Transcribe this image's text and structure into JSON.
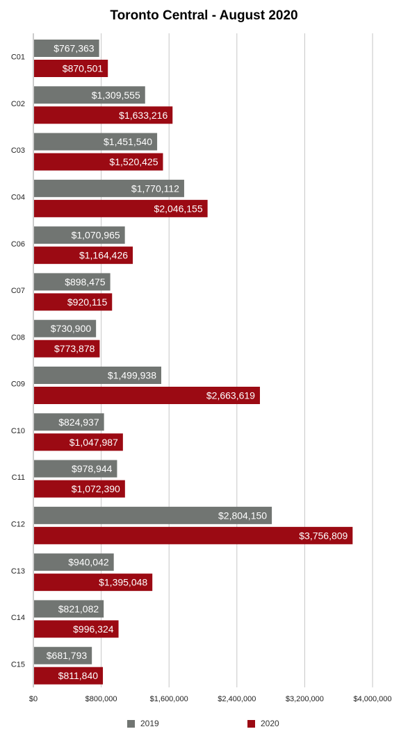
{
  "chart_data": {
    "type": "bar",
    "orientation": "horizontal",
    "title": "Toronto Central - August 2020",
    "xlabel": "",
    "ylabel": "",
    "categories": [
      "C01",
      "C02",
      "C03",
      "C04",
      "C06",
      "C07",
      "C08",
      "C09",
      "C10",
      "C11",
      "C12",
      "C13",
      "C14",
      "C15"
    ],
    "series": [
      {
        "name": "2019",
        "color": "#717572",
        "values": [
          767363,
          1309555,
          1451540,
          1770112,
          1070965,
          898475,
          730900,
          1499938,
          824937,
          978944,
          2804150,
          940042,
          821082,
          681793
        ],
        "labels": [
          "$767,363",
          "$1,309,555",
          "$1,451,540",
          "$1,770,112",
          "$1,070,965",
          "$898,475",
          "$730,900",
          "$1,499,938",
          "$824,937",
          "$978,944",
          "$2,804,150",
          "$940,042",
          "$821,082",
          "$681,793"
        ]
      },
      {
        "name": "2020",
        "color": "#9b0a13",
        "values": [
          870501,
          1633216,
          1520425,
          2046155,
          1164426,
          920115,
          773878,
          2663619,
          1047987,
          1072390,
          3756809,
          1395048,
          996324,
          811840
        ],
        "labels": [
          "$870,501",
          "$1,633,216",
          "$1,520,425",
          "$2,046,155",
          "$1,164,426",
          "$920,115",
          "$773,878",
          "$2,663,619",
          "$1,047,987",
          "$1,072,390",
          "$3,756,809",
          "$1,395,048",
          "$996,324",
          "$811,840"
        ]
      }
    ],
    "xlim": [
      0,
      4000000
    ],
    "xticks": [
      0,
      800000,
      1600000,
      2400000,
      3200000,
      4000000
    ],
    "xtick_labels": [
      "$0",
      "$800,000",
      "$1,600,000",
      "$2,400,000",
      "$3,200,000",
      "$4,000,000"
    ],
    "grid": true,
    "legend_position": "bottom"
  }
}
